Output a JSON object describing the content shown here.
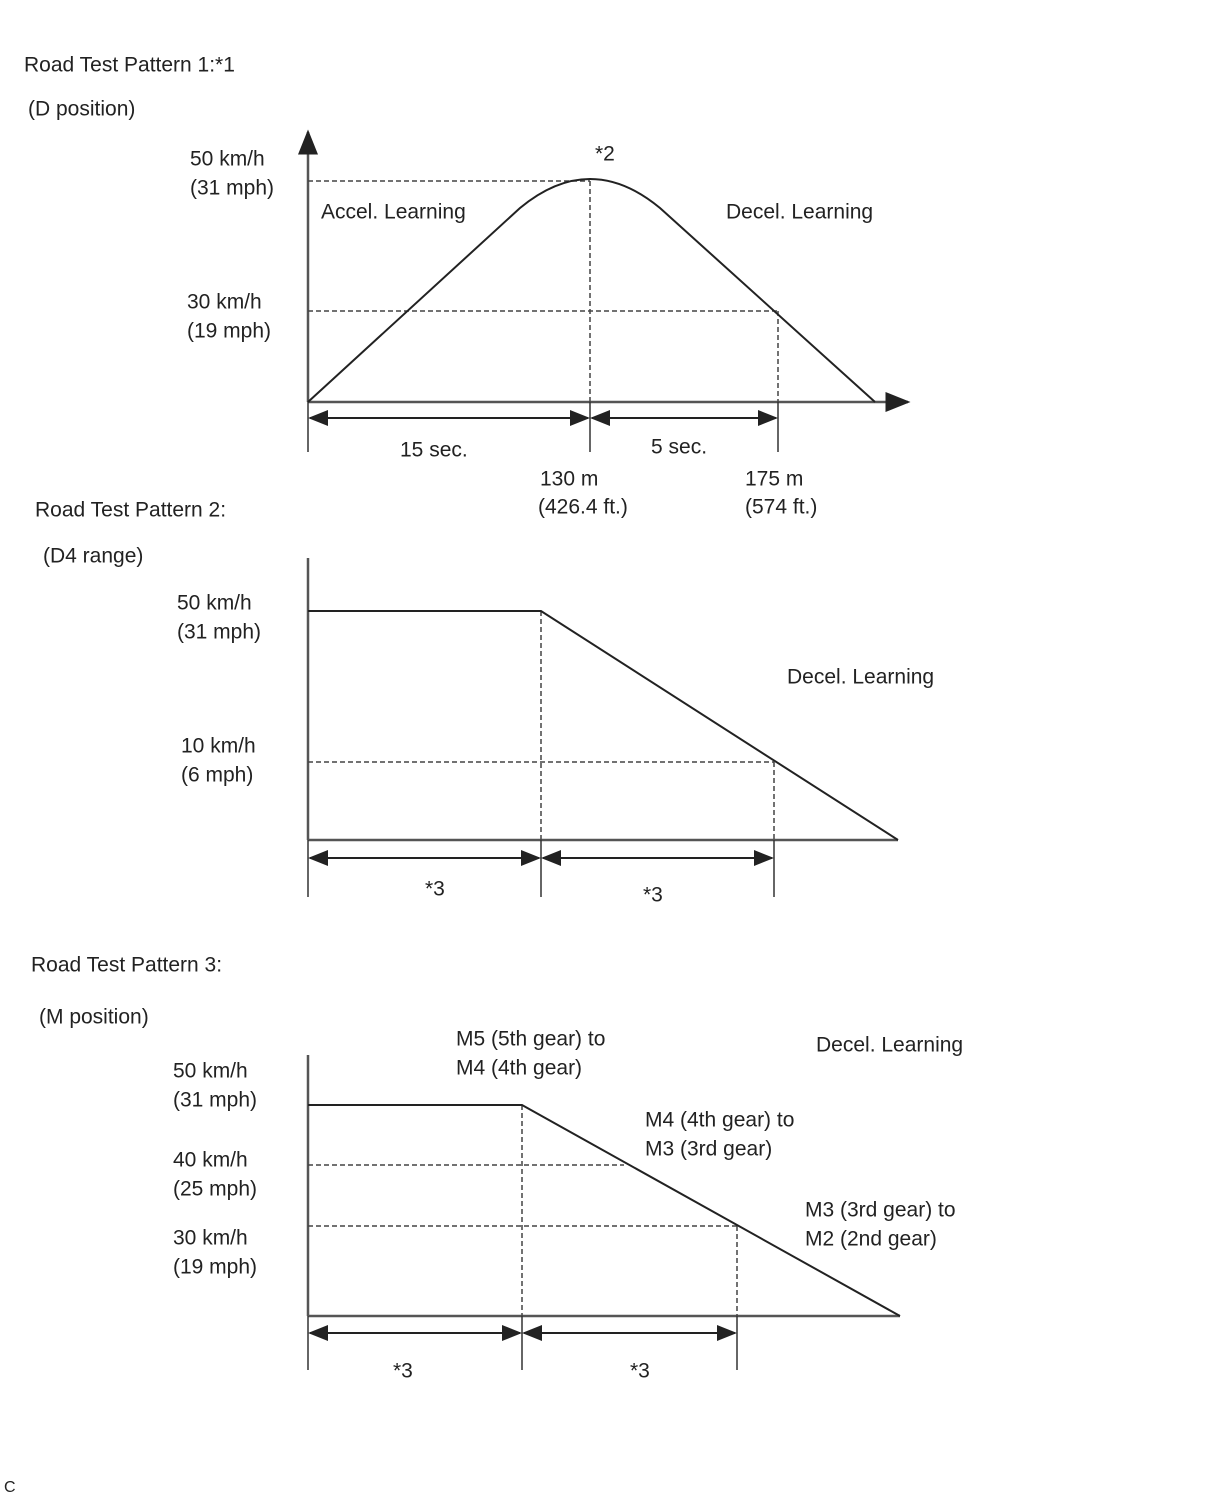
{
  "pattern1": {
    "title": "Road Test Pattern 1:*1",
    "subtitle": "(D position)",
    "y_labels": [
      [
        "50 km/h",
        "(31 mph)"
      ],
      [
        "30 km/h",
        "(19 mph)"
      ]
    ],
    "peak_note": "*2",
    "accel_label": "Accel. Learning",
    "decel_label": "Decel. Learning",
    "interval1": "15 sec.",
    "interval2": "5 sec.",
    "dist1": [
      "130 m",
      "(426.4 ft.)"
    ],
    "dist2": [
      "175 m",
      "(574 ft.)"
    ]
  },
  "pattern2": {
    "title": "Road Test Pattern 2:",
    "subtitle": "(D4 range)",
    "y_labels": [
      [
        "50 km/h",
        "(31 mph)"
      ],
      [
        "10 km/h",
        "(6 mph)"
      ]
    ],
    "decel_label": "Decel. Learning",
    "interval1": "*3",
    "interval2": "*3"
  },
  "pattern3": {
    "title": "Road Test Pattern 3:",
    "subtitle": "(M position)",
    "y_labels": [
      [
        "50 km/h",
        "(31 mph)"
      ],
      [
        "40 km/h",
        "(25 mph)"
      ],
      [
        "30 km/h",
        "(19 mph)"
      ]
    ],
    "shift1": [
      "M5 (5th gear) to",
      "M4 (4th gear)"
    ],
    "shift2": [
      "M4 (4th gear) to",
      "M3 (3rd gear)"
    ],
    "shift3": [
      "M3 (3rd gear) to",
      "M2 (2nd gear)"
    ],
    "decel_label": "Decel. Learning",
    "interval1": "*3",
    "interval2": "*3"
  },
  "figure_code": "C"
}
